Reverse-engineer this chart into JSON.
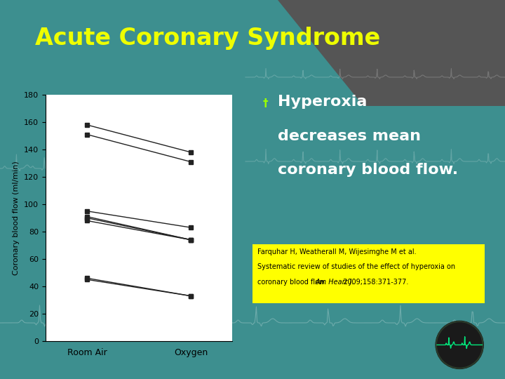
{
  "title": "Acute Coronary Syndrome",
  "title_color": "#EEFF00",
  "bg_color": "#3d8f8f",
  "plot_bg": "#ffffff",
  "bullet_text_line1": "Hyperoxia",
  "bullet_text_line2": "decreases mean",
  "bullet_text_line3": "coronary blood flow.",
  "bullet_color": "#ffffff",
  "bullet_marker_color": "#99ff00",
  "reference_line1": "Farquhar H, Weatherall M, Wijesimghe M et al.",
  "reference_line2": "Systematic review of studies of the effect of hyperoxia on",
  "reference_line3": "coronary blood flow. ",
  "reference_line3_italic": "Am Heart J.",
  "reference_line3_end": " 2009;158:371-377.",
  "reference_bg": "#FFFF00",
  "ylabel": "Coronary blood flow (ml/min)",
  "xtick_labels": [
    "Room Air",
    "Oxygen"
  ],
  "ylim": [
    0,
    180
  ],
  "yticks": [
    0,
    20,
    40,
    60,
    80,
    100,
    120,
    140,
    160,
    180
  ],
  "series": [
    [
      158,
      138
    ],
    [
      151,
      131
    ],
    [
      95,
      83
    ],
    [
      91,
      74
    ],
    [
      90,
      74
    ],
    [
      88,
      74
    ],
    [
      46,
      33
    ],
    [
      45,
      33
    ]
  ],
  "line_color": "#222222",
  "marker": "s",
  "marker_size": 4,
  "ecg_color_alpha": 0.3
}
